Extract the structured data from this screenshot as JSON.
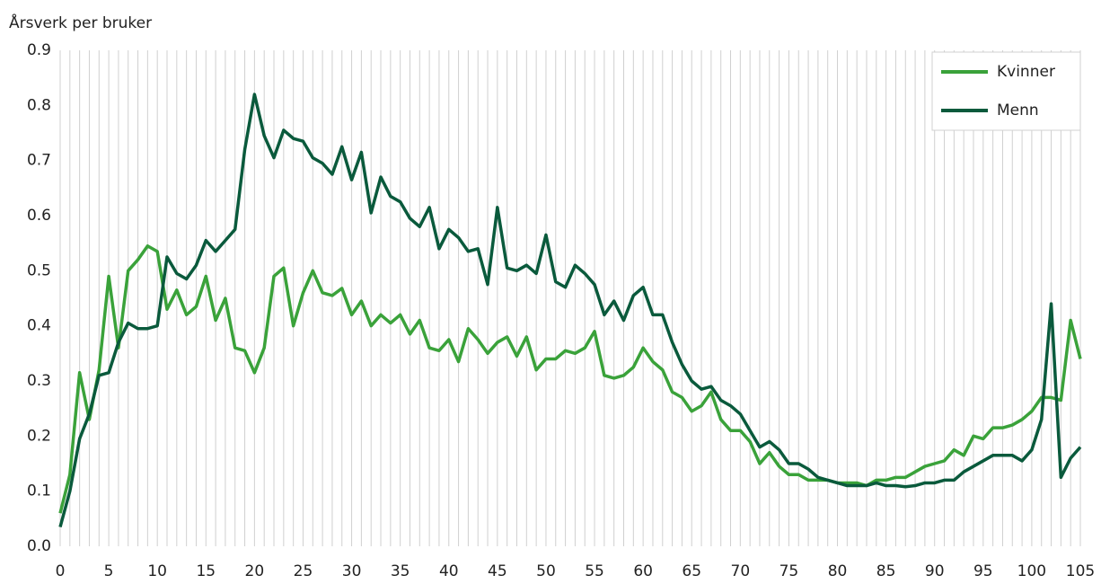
{
  "chart_data": {
    "type": "line",
    "y_label": "Årsverk per bruker",
    "x": [
      0,
      1,
      2,
      3,
      4,
      5,
      6,
      7,
      8,
      9,
      10,
      11,
      12,
      13,
      14,
      15,
      16,
      17,
      18,
      19,
      20,
      21,
      22,
      23,
      24,
      25,
      26,
      27,
      28,
      29,
      30,
      31,
      32,
      33,
      34,
      35,
      36,
      37,
      38,
      39,
      40,
      41,
      42,
      43,
      44,
      45,
      46,
      47,
      48,
      49,
      50,
      51,
      52,
      53,
      54,
      55,
      56,
      57,
      58,
      59,
      60,
      61,
      62,
      63,
      64,
      65,
      66,
      67,
      68,
      69,
      70,
      71,
      72,
      73,
      74,
      75,
      76,
      77,
      78,
      79,
      80,
      81,
      82,
      83,
      84,
      85,
      86,
      87,
      88,
      89,
      90,
      91,
      92,
      93,
      94,
      95,
      96,
      97,
      98,
      99,
      100,
      101,
      102,
      103,
      104,
      105
    ],
    "series": [
      {
        "name": "Kvinner",
        "color": "#3aa23a",
        "values": [
          0.06,
          0.13,
          0.315,
          0.23,
          0.32,
          0.49,
          0.36,
          0.5,
          0.52,
          0.545,
          0.535,
          0.43,
          0.465,
          0.42,
          0.435,
          0.49,
          0.41,
          0.45,
          0.36,
          0.355,
          0.315,
          0.36,
          0.49,
          0.505,
          0.4,
          0.46,
          0.5,
          0.46,
          0.455,
          0.468,
          0.42,
          0.445,
          0.4,
          0.42,
          0.405,
          0.42,
          0.385,
          0.41,
          0.36,
          0.355,
          0.375,
          0.335,
          0.395,
          0.375,
          0.35,
          0.37,
          0.38,
          0.345,
          0.38,
          0.32,
          0.34,
          0.34,
          0.355,
          0.35,
          0.36,
          0.39,
          0.31,
          0.305,
          0.31,
          0.325,
          0.36,
          0.335,
          0.32,
          0.28,
          0.27,
          0.245,
          0.255,
          0.28,
          0.23,
          0.21,
          0.21,
          0.19,
          0.15,
          0.17,
          0.145,
          0.13,
          0.13,
          0.12,
          0.12,
          0.12,
          0.115,
          0.115,
          0.115,
          0.11,
          0.12,
          0.12,
          0.125,
          0.125,
          0.135,
          0.145,
          0.15,
          0.155,
          0.175,
          0.165,
          0.2,
          0.195,
          0.215,
          0.215,
          0.22,
          0.23,
          0.245,
          0.27,
          0.27,
          0.265,
          0.41,
          0.34
        ]
      },
      {
        "name": "Menn",
        "color": "#0a5a3c",
        "values": [
          0.035,
          0.1,
          0.195,
          0.24,
          0.31,
          0.315,
          0.37,
          0.405,
          0.395,
          0.395,
          0.4,
          0.525,
          0.495,
          0.485,
          0.51,
          0.555,
          0.535,
          0.555,
          0.575,
          0.72,
          0.82,
          0.745,
          0.705,
          0.755,
          0.74,
          0.735,
          0.705,
          0.695,
          0.675,
          0.725,
          0.665,
          0.715,
          0.605,
          0.67,
          0.635,
          0.625,
          0.595,
          0.58,
          0.615,
          0.54,
          0.575,
          0.56,
          0.535,
          0.54,
          0.475,
          0.615,
          0.505,
          0.5,
          0.51,
          0.495,
          0.565,
          0.48,
          0.47,
          0.51,
          0.495,
          0.475,
          0.42,
          0.445,
          0.41,
          0.455,
          0.47,
          0.42,
          0.42,
          0.37,
          0.33,
          0.3,
          0.285,
          0.29,
          0.265,
          0.255,
          0.24,
          0.21,
          0.18,
          0.19,
          0.175,
          0.15,
          0.15,
          0.14,
          0.125,
          0.12,
          0.115,
          0.11,
          0.11,
          0.11,
          0.115,
          0.11,
          0.11,
          0.108,
          0.11,
          0.115,
          0.115,
          0.12,
          0.12,
          0.135,
          0.145,
          0.155,
          0.165,
          0.165,
          0.165,
          0.155,
          0.175,
          0.23,
          0.44,
          0.125,
          0.16,
          0.18
        ]
      }
    ],
    "xlim": [
      0,
      105
    ],
    "xticks": [
      0,
      5,
      10,
      15,
      20,
      25,
      30,
      35,
      40,
      45,
      50,
      55,
      60,
      65,
      70,
      75,
      80,
      85,
      90,
      95,
      100,
      105
    ],
    "ylim": [
      0,
      0.9
    ],
    "yticks": [
      {
        "value": 0,
        "label": "0.0"
      },
      0.1,
      0.2,
      0.3,
      0.4,
      0.5,
      0.6,
      0.7,
      0.8,
      0.9
    ],
    "grid": "x",
    "legend": "top-right"
  }
}
